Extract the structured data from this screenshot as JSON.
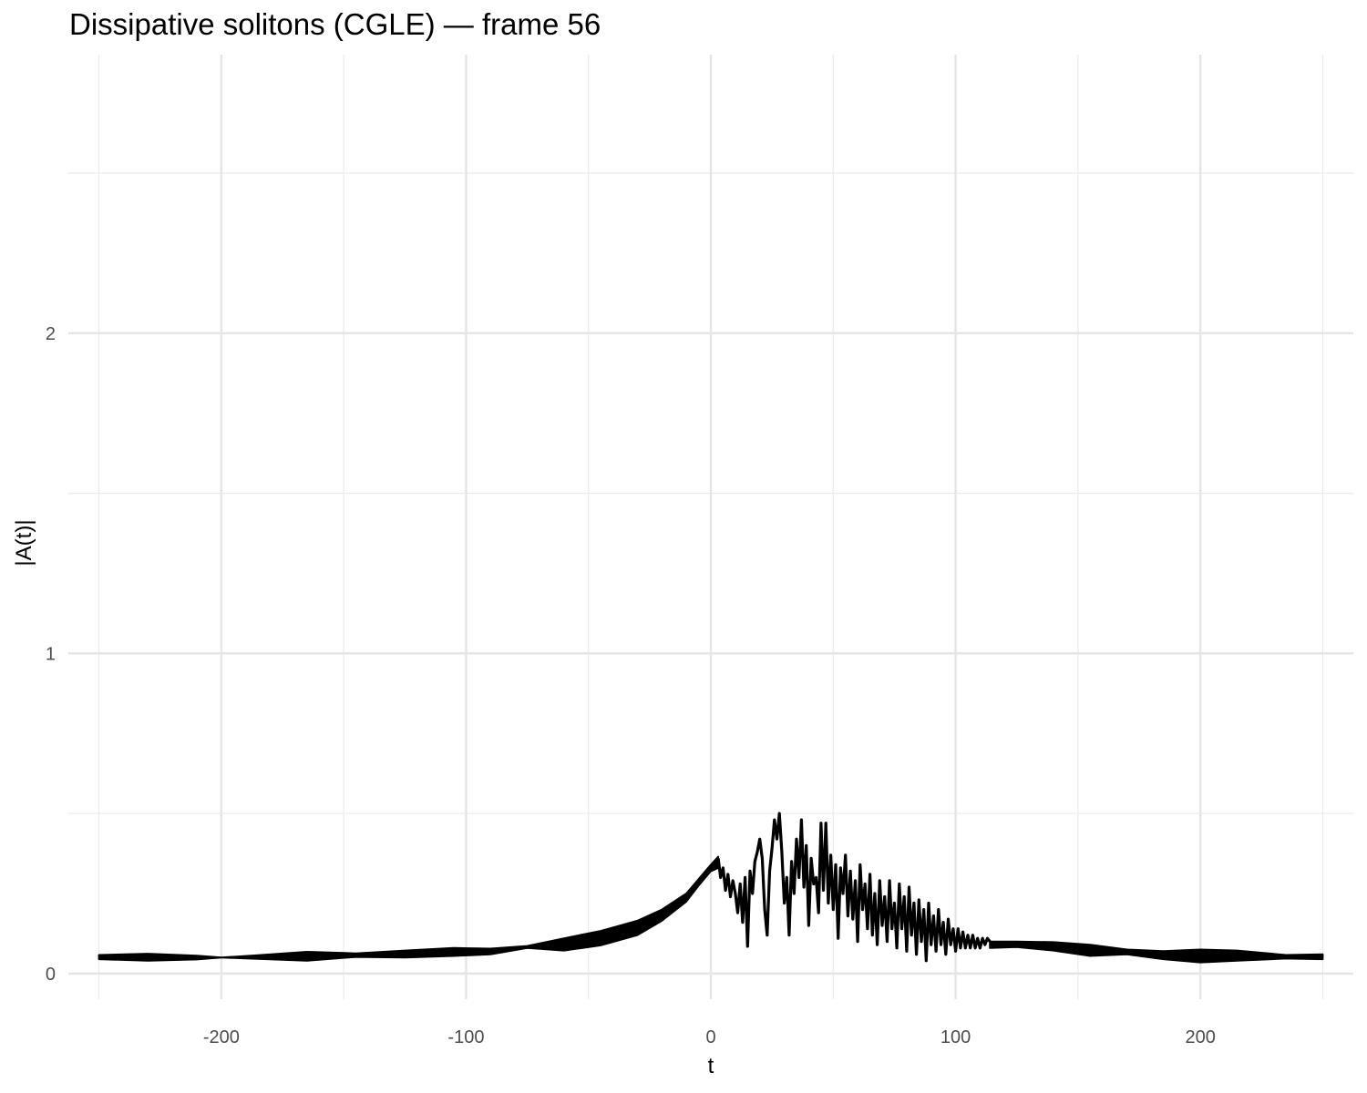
{
  "chart_data": {
    "type": "line",
    "title": "Dissipative solitons (CGLE) — frame 56",
    "xlabel": "t",
    "ylabel": "|A(t)|",
    "xlim": [
      -262.5,
      262.5
    ],
    "ylim": [
      -0.08,
      2.87
    ],
    "x_ticks": [
      -200,
      -100,
      0,
      100,
      200
    ],
    "y_ticks": [
      0,
      1,
      2
    ],
    "x_tick_labels": [
      "-200",
      "-100",
      "0",
      "100",
      "200"
    ],
    "y_tick_labels": [
      "0",
      "1",
      "2"
    ],
    "grid": true,
    "legend": "none",
    "line_color": "#000000",
    "x_range": [
      -250,
      250
    ],
    "envelope_upper": [
      [
        -250,
        0.058
      ],
      [
        -230,
        0.062
      ],
      [
        -210,
        0.056
      ],
      [
        -200,
        0.05
      ],
      [
        -185,
        0.057
      ],
      [
        -165,
        0.068
      ],
      [
        -145,
        0.063
      ],
      [
        -125,
        0.072
      ],
      [
        -105,
        0.08
      ],
      [
        -90,
        0.078
      ],
      [
        -75,
        0.086
      ],
      [
        -60,
        0.11
      ],
      [
        -45,
        0.133
      ],
      [
        -30,
        0.165
      ],
      [
        -20,
        0.2
      ],
      [
        -10,
        0.25
      ],
      [
        -5,
        0.295
      ],
      [
        0,
        0.34
      ],
      [
        3,
        0.365
      ]
    ],
    "envelope_lower": [
      [
        -250,
        0.045
      ],
      [
        -230,
        0.04
      ],
      [
        -210,
        0.044
      ],
      [
        -200,
        0.05
      ],
      [
        -185,
        0.046
      ],
      [
        -165,
        0.04
      ],
      [
        -145,
        0.052
      ],
      [
        -125,
        0.05
      ],
      [
        -105,
        0.055
      ],
      [
        -90,
        0.06
      ],
      [
        -75,
        0.08
      ],
      [
        -60,
        0.072
      ],
      [
        -45,
        0.088
      ],
      [
        -30,
        0.12
      ],
      [
        -20,
        0.165
      ],
      [
        -10,
        0.225
      ],
      [
        -5,
        0.275
      ],
      [
        0,
        0.32
      ],
      [
        3,
        0.33
      ]
    ],
    "turbulent_trace": [
      [
        3,
        0.36
      ],
      [
        4,
        0.3
      ],
      [
        5,
        0.33
      ],
      [
        6,
        0.26
      ],
      [
        7,
        0.31
      ],
      [
        8,
        0.24
      ],
      [
        9,
        0.29
      ],
      [
        10,
        0.25
      ],
      [
        11,
        0.19
      ],
      [
        12,
        0.28
      ],
      [
        13,
        0.16
      ],
      [
        14,
        0.3
      ],
      [
        15,
        0.085
      ],
      [
        16,
        0.32
      ],
      [
        17,
        0.25
      ],
      [
        18,
        0.35
      ],
      [
        19,
        0.38
      ],
      [
        20,
        0.42
      ],
      [
        21,
        0.36
      ],
      [
        22,
        0.2
      ],
      [
        23,
        0.12
      ],
      [
        24,
        0.32
      ],
      [
        25,
        0.39
      ],
      [
        26,
        0.48
      ],
      [
        27,
        0.42
      ],
      [
        28,
        0.5
      ],
      [
        29,
        0.38
      ],
      [
        30,
        0.22
      ],
      [
        31,
        0.3
      ],
      [
        32,
        0.12
      ],
      [
        33,
        0.35
      ],
      [
        34,
        0.25
      ],
      [
        35,
        0.42
      ],
      [
        36,
        0.3
      ],
      [
        37,
        0.48
      ],
      [
        38,
        0.27
      ],
      [
        39,
        0.4
      ],
      [
        40,
        0.15
      ],
      [
        41,
        0.36
      ],
      [
        42,
        0.28
      ],
      [
        43,
        0.3
      ],
      [
        44,
        0.19
      ],
      [
        45,
        0.47
      ],
      [
        46,
        0.26
      ],
      [
        47,
        0.47
      ],
      [
        48,
        0.22
      ],
      [
        49,
        0.37
      ],
      [
        50,
        0.2
      ],
      [
        51,
        0.34
      ],
      [
        52,
        0.11
      ],
      [
        53,
        0.33
      ],
      [
        54,
        0.25
      ],
      [
        55,
        0.37
      ],
      [
        56,
        0.18
      ],
      [
        57,
        0.32
      ],
      [
        58,
        0.17
      ],
      [
        59,
        0.29
      ],
      [
        60,
        0.1
      ],
      [
        61,
        0.34
      ],
      [
        62,
        0.2
      ],
      [
        63,
        0.28
      ],
      [
        64,
        0.14
      ],
      [
        65,
        0.31
      ],
      [
        66,
        0.12
      ],
      [
        67,
        0.25
      ],
      [
        68,
        0.09
      ],
      [
        69,
        0.29
      ],
      [
        70,
        0.15
      ],
      [
        71,
        0.24
      ],
      [
        72,
        0.1
      ],
      [
        73,
        0.29
      ],
      [
        74,
        0.14
      ],
      [
        75,
        0.22
      ],
      [
        76,
        0.08
      ],
      [
        77,
        0.28
      ],
      [
        78,
        0.14
      ],
      [
        79,
        0.24
      ],
      [
        80,
        0.07
      ],
      [
        81,
        0.27
      ],
      [
        82,
        0.12
      ],
      [
        83,
        0.22
      ],
      [
        84,
        0.06
      ],
      [
        85,
        0.23
      ],
      [
        86,
        0.1
      ],
      [
        87,
        0.2
      ],
      [
        88,
        0.04
      ],
      [
        89,
        0.22
      ],
      [
        90,
        0.09
      ],
      [
        91,
        0.18
      ],
      [
        92,
        0.07
      ],
      [
        93,
        0.2
      ],
      [
        94,
        0.09
      ],
      [
        95,
        0.16
      ],
      [
        96,
        0.06
      ],
      [
        97,
        0.17
      ],
      [
        98,
        0.09
      ],
      [
        99,
        0.14
      ],
      [
        100,
        0.07
      ],
      [
        101,
        0.14
      ],
      [
        102,
        0.08
      ],
      [
        103,
        0.13
      ],
      [
        104,
        0.08
      ],
      [
        105,
        0.12
      ],
      [
        106,
        0.08
      ],
      [
        107,
        0.12
      ],
      [
        108,
        0.08
      ],
      [
        109,
        0.11
      ],
      [
        110,
        0.08
      ],
      [
        111,
        0.11
      ],
      [
        112,
        0.09
      ],
      [
        113,
        0.11
      ],
      [
        114,
        0.1
      ]
    ],
    "tail_upper": [
      [
        114,
        0.1
      ],
      [
        125,
        0.1
      ],
      [
        140,
        0.098
      ],
      [
        155,
        0.09
      ],
      [
        170,
        0.075
      ],
      [
        185,
        0.07
      ],
      [
        200,
        0.075
      ],
      [
        215,
        0.072
      ],
      [
        235,
        0.058
      ],
      [
        250,
        0.06
      ]
    ],
    "tail_lower": [
      [
        114,
        0.08
      ],
      [
        125,
        0.083
      ],
      [
        140,
        0.072
      ],
      [
        155,
        0.055
      ],
      [
        170,
        0.06
      ],
      [
        185,
        0.045
      ],
      [
        200,
        0.035
      ],
      [
        215,
        0.04
      ],
      [
        235,
        0.047
      ],
      [
        250,
        0.045
      ]
    ]
  }
}
